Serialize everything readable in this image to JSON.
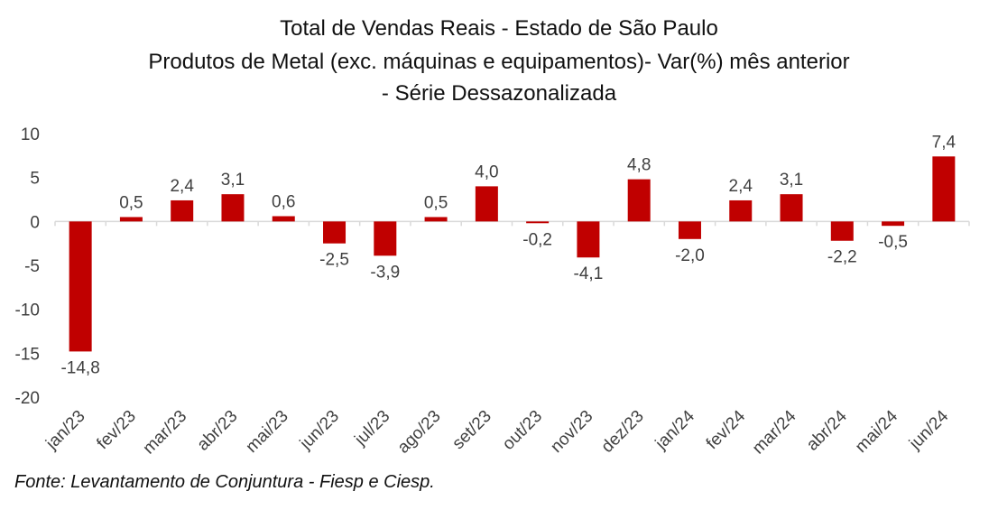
{
  "chart_data": {
    "type": "bar",
    "title_lines": [
      "Total de Vendas Reais - Estado de São Paulo",
      "Produtos de Metal (exc. máquinas e equipamentos)- Var(%) mês anterior",
      "- Série Dessazonalizada"
    ],
    "categories": [
      "jan/23",
      "fev/23",
      "mar/23",
      "abr/23",
      "mai/23",
      "jun/23",
      "jul/23",
      "ago/23",
      "set/23",
      "out/23",
      "nov/23",
      "dez/23",
      "jan/24",
      "fev/24",
      "mar/24",
      "abr/24",
      "mai/24",
      "jun/24"
    ],
    "values": [
      -14.8,
      0.5,
      2.4,
      3.1,
      0.6,
      -2.5,
      -3.9,
      0.5,
      4.0,
      -0.2,
      -4.1,
      4.8,
      -2.0,
      2.4,
      3.1,
      -2.2,
      -0.5,
      7.4
    ],
    "value_labels": [
      "-14,8",
      "0,5",
      "2,4",
      "3,1",
      "0,6",
      "-2,5",
      "-3,9",
      "0,5",
      "4,0",
      "-0,2",
      "-4,1",
      "4,8",
      "-2,0",
      "2,4",
      "3,1",
      "-2,2",
      "-0,5",
      "7,4"
    ],
    "y_ticks": [
      10,
      5,
      0,
      -5,
      -10,
      -15,
      -20
    ],
    "y_tick_labels": [
      "10",
      "5",
      "0",
      "-5",
      "-10",
      "-15",
      "-20"
    ],
    "ylim": [
      -20,
      10
    ],
    "xlabel": "",
    "ylabel": "",
    "bar_color": "#C00000",
    "axis_color": "#D9D9D9",
    "grid": false,
    "legend": "none"
  },
  "source_note": "Fonte: Levantamento de Conjuntura - Fiesp e Ciesp."
}
